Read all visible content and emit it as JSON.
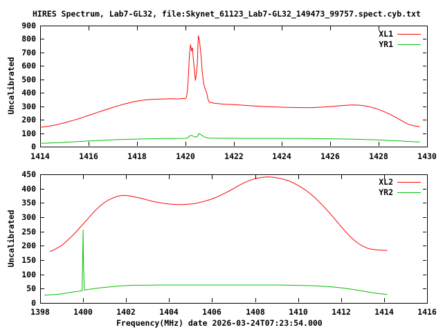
{
  "title": "HIRES Spectrum, Lab7-GL32, file:Skynet_61123_Lab7-GL32_149473_99757.spect.cyb.txt",
  "colors": {
    "background": "#ffffff",
    "foreground": "#000000",
    "series_red": "#ff0000",
    "series_green": "#00c000"
  },
  "chart_data": [
    {
      "type": "line",
      "ylabel": "Uncalibrated",
      "xlabel": "",
      "xlim": [
        1414,
        1430
      ],
      "ylim": [
        0,
        900
      ],
      "x_ticks": [
        1414,
        1416,
        1418,
        1420,
        1422,
        1424,
        1426,
        1428,
        1430
      ],
      "y_ticks": [
        0,
        100,
        200,
        300,
        400,
        500,
        600,
        700,
        800,
        900
      ],
      "grid": false,
      "legend_position": "top-right-inside",
      "series": [
        {
          "name": "XL1",
          "color": "#ff0000",
          "points": [
            [
              1414.0,
              144
            ],
            [
              1414.2,
              148
            ],
            [
              1414.4,
              153
            ],
            [
              1414.6,
              160
            ],
            [
              1414.8,
              168
            ],
            [
              1415.0,
              177
            ],
            [
              1415.2,
              187
            ],
            [
              1415.4,
              197
            ],
            [
              1415.6,
              208
            ],
            [
              1415.8,
              220
            ],
            [
              1416.0,
              232
            ],
            [
              1416.2,
              244
            ],
            [
              1416.4,
              256
            ],
            [
              1416.6,
              268
            ],
            [
              1416.8,
              280
            ],
            [
              1417.0,
              291
            ],
            [
              1417.2,
              302
            ],
            [
              1417.4,
              313
            ],
            [
              1417.6,
              322
            ],
            [
              1417.8,
              331
            ],
            [
              1418.0,
              338
            ],
            [
              1418.2,
              344
            ],
            [
              1418.4,
              348
            ],
            [
              1418.6,
              351
            ],
            [
              1418.8,
              353
            ],
            [
              1419.0,
              354
            ],
            [
              1419.2,
              355
            ],
            [
              1419.4,
              356
            ],
            [
              1419.6,
              355
            ],
            [
              1419.8,
              356
            ],
            [
              1419.9,
              358
            ],
            [
              1420.0,
              357
            ],
            [
              1420.05,
              368
            ],
            [
              1420.1,
              430
            ],
            [
              1420.14,
              560
            ],
            [
              1420.18,
              700
            ],
            [
              1420.22,
              758
            ],
            [
              1420.26,
              712
            ],
            [
              1420.3,
              735
            ],
            [
              1420.34,
              640
            ],
            [
              1420.38,
              565
            ],
            [
              1420.42,
              492
            ],
            [
              1420.46,
              540
            ],
            [
              1420.5,
              620
            ],
            [
              1420.54,
              825
            ],
            [
              1420.58,
              795
            ],
            [
              1420.62,
              735
            ],
            [
              1420.66,
              660
            ],
            [
              1420.7,
              560
            ],
            [
              1420.74,
              500
            ],
            [
              1420.78,
              455
            ],
            [
              1420.82,
              430
            ],
            [
              1420.86,
              415
            ],
            [
              1420.9,
              390
            ],
            [
              1420.94,
              352
            ],
            [
              1421.0,
              330
            ],
            [
              1421.2,
              323
            ],
            [
              1421.4,
              319
            ],
            [
              1421.6,
              316
            ],
            [
              1421.8,
              314
            ],
            [
              1422.0,
              312
            ],
            [
              1422.4,
              308
            ],
            [
              1422.8,
              303
            ],
            [
              1423.2,
              299
            ],
            [
              1423.6,
              296
            ],
            [
              1424.0,
              293
            ],
            [
              1424.4,
              291
            ],
            [
              1424.8,
              290
            ],
            [
              1425.2,
              290
            ],
            [
              1425.6,
              293
            ],
            [
              1426.0,
              298
            ],
            [
              1426.4,
              304
            ],
            [
              1426.8,
              309
            ],
            [
              1427.0,
              310
            ],
            [
              1427.2,
              308
            ],
            [
              1427.4,
              304
            ],
            [
              1427.6,
              297
            ],
            [
              1427.8,
              288
            ],
            [
              1428.0,
              276
            ],
            [
              1428.2,
              262
            ],
            [
              1428.4,
              246
            ],
            [
              1428.6,
              228
            ],
            [
              1428.8,
              208
            ],
            [
              1429.0,
              188
            ],
            [
              1429.2,
              168
            ],
            [
              1429.45,
              155
            ],
            [
              1429.7,
              147
            ]
          ]
        },
        {
          "name": "YR1",
          "color": "#00c000",
          "points": [
            [
              1414.0,
              24
            ],
            [
              1414.4,
              27
            ],
            [
              1414.8,
              30
            ],
            [
              1415.2,
              34
            ],
            [
              1415.6,
              38
            ],
            [
              1416.0,
              42
            ],
            [
              1416.4,
              46
            ],
            [
              1416.8,
              49
            ],
            [
              1417.2,
              52
            ],
            [
              1417.6,
              54
            ],
            [
              1418.0,
              56
            ],
            [
              1418.4,
              58
            ],
            [
              1418.8,
              59
            ],
            [
              1419.2,
              60
            ],
            [
              1419.6,
              60
            ],
            [
              1420.0,
              61
            ],
            [
              1420.1,
              65
            ],
            [
              1420.18,
              80
            ],
            [
              1420.26,
              84
            ],
            [
              1420.34,
              76
            ],
            [
              1420.42,
              70
            ],
            [
              1420.5,
              75
            ],
            [
              1420.56,
              97
            ],
            [
              1420.64,
              90
            ],
            [
              1420.72,
              80
            ],
            [
              1420.8,
              72
            ],
            [
              1420.9,
              66
            ],
            [
              1421.0,
              64
            ],
            [
              1421.4,
              62
            ],
            [
              1421.8,
              62
            ],
            [
              1422.4,
              61
            ],
            [
              1423.0,
              61
            ],
            [
              1424.0,
              61
            ],
            [
              1425.0,
              60
            ],
            [
              1425.6,
              59
            ],
            [
              1426.2,
              58
            ],
            [
              1426.8,
              56
            ],
            [
              1427.4,
              53
            ],
            [
              1428.0,
              50
            ],
            [
              1428.4,
              46
            ],
            [
              1428.8,
              43
            ],
            [
              1429.3,
              38
            ],
            [
              1429.7,
              35
            ]
          ]
        }
      ]
    },
    {
      "type": "line",
      "ylabel": "Uncalibrated",
      "xlabel": "Frequency(MHz) date 2026-03-24T07:23:54.000",
      "xlim": [
        1398,
        1416
      ],
      "ylim": [
        0,
        450
      ],
      "x_ticks": [
        1398,
        1400,
        1402,
        1404,
        1406,
        1408,
        1410,
        1412,
        1414,
        1416
      ],
      "y_ticks": [
        0,
        50,
        100,
        150,
        200,
        250,
        300,
        350,
        400,
        450
      ],
      "grid": false,
      "legend_position": "top-right-inside",
      "series": [
        {
          "name": "XL2",
          "color": "#ff0000",
          "points": [
            [
              1398.45,
              180
            ],
            [
              1398.6,
              184
            ],
            [
              1398.8,
              192
            ],
            [
              1399.0,
              201
            ],
            [
              1399.2,
              214
            ],
            [
              1399.4,
              228
            ],
            [
              1399.6,
              243
            ],
            [
              1399.8,
              259
            ],
            [
              1400.0,
              276
            ],
            [
              1400.2,
              293
            ],
            [
              1400.4,
              310
            ],
            [
              1400.6,
              326
            ],
            [
              1400.8,
              340
            ],
            [
              1401.0,
              352
            ],
            [
              1401.2,
              361
            ],
            [
              1401.4,
              368
            ],
            [
              1401.6,
              373
            ],
            [
              1401.8,
              376
            ],
            [
              1402.0,
              376
            ],
            [
              1402.2,
              374
            ],
            [
              1402.4,
              371
            ],
            [
              1402.6,
              368
            ],
            [
              1402.8,
              364
            ],
            [
              1403.0,
              360
            ],
            [
              1403.2,
              356
            ],
            [
              1403.4,
              353
            ],
            [
              1403.6,
              350
            ],
            [
              1403.8,
              348
            ],
            [
              1404.0,
              346
            ],
            [
              1404.2,
              345
            ],
            [
              1404.4,
              344
            ],
            [
              1404.6,
              344
            ],
            [
              1404.8,
              345
            ],
            [
              1405.0,
              346
            ],
            [
              1405.2,
              348
            ],
            [
              1405.4,
              351
            ],
            [
              1405.6,
              355
            ],
            [
              1405.8,
              359
            ],
            [
              1406.0,
              364
            ],
            [
              1406.2,
              370
            ],
            [
              1406.4,
              377
            ],
            [
              1406.6,
              384
            ],
            [
              1406.8,
              392
            ],
            [
              1407.0,
              400
            ],
            [
              1407.2,
              409
            ],
            [
              1407.4,
              417
            ],
            [
              1407.6,
              424
            ],
            [
              1407.8,
              430
            ],
            [
              1408.0,
              435
            ],
            [
              1408.2,
              438
            ],
            [
              1408.4,
              440
            ],
            [
              1408.6,
              441
            ],
            [
              1408.8,
              440
            ],
            [
              1409.0,
              438
            ],
            [
              1409.2,
              435
            ],
            [
              1409.4,
              431
            ],
            [
              1409.6,
              426
            ],
            [
              1409.8,
              419
            ],
            [
              1410.0,
              411
            ],
            [
              1410.2,
              402
            ],
            [
              1410.4,
              392
            ],
            [
              1410.6,
              380
            ],
            [
              1410.8,
              367
            ],
            [
              1411.0,
              352
            ],
            [
              1411.2,
              337
            ],
            [
              1411.4,
              320
            ],
            [
              1411.6,
              303
            ],
            [
              1411.8,
              285
            ],
            [
              1412.0,
              267
            ],
            [
              1412.2,
              250
            ],
            [
              1412.4,
              234
            ],
            [
              1412.6,
              220
            ],
            [
              1412.8,
              208
            ],
            [
              1413.0,
              199
            ],
            [
              1413.2,
              192
            ],
            [
              1413.4,
              188
            ],
            [
              1413.6,
              186
            ],
            [
              1413.8,
              185
            ],
            [
              1414.0,
              184
            ],
            [
              1414.15,
              184
            ]
          ]
        },
        {
          "name": "YR2",
          "color": "#00c000",
          "points": [
            [
              1398.2,
              27
            ],
            [
              1398.6,
              29
            ],
            [
              1398.9,
              31
            ],
            [
              1399.2,
              34
            ],
            [
              1399.5,
              38
            ],
            [
              1399.8,
              41
            ],
            [
              1399.95,
              43
            ],
            [
              1400.0,
              255
            ],
            [
              1400.01,
              160
            ],
            [
              1400.05,
              45
            ],
            [
              1400.3,
              48
            ],
            [
              1400.6,
              51
            ],
            [
              1400.9,
              54
            ],
            [
              1401.2,
              56
            ],
            [
              1401.5,
              58
            ],
            [
              1401.8,
              60
            ],
            [
              1402.1,
              61
            ],
            [
              1402.4,
              62
            ],
            [
              1403.0,
              62
            ],
            [
              1403.6,
              63
            ],
            [
              1404.2,
              63
            ],
            [
              1405.0,
              63
            ],
            [
              1406.0,
              63
            ],
            [
              1407.0,
              63
            ],
            [
              1408.0,
              63
            ],
            [
              1409.0,
              63
            ],
            [
              1409.6,
              62
            ],
            [
              1410.2,
              61
            ],
            [
              1410.8,
              60
            ],
            [
              1411.2,
              58
            ],
            [
              1411.6,
              56
            ],
            [
              1412.0,
              53
            ],
            [
              1412.4,
              49
            ],
            [
              1412.8,
              44
            ],
            [
              1413.2,
              39
            ],
            [
              1413.6,
              34
            ],
            [
              1414.0,
              31
            ],
            [
              1414.15,
              30
            ]
          ]
        }
      ]
    }
  ]
}
